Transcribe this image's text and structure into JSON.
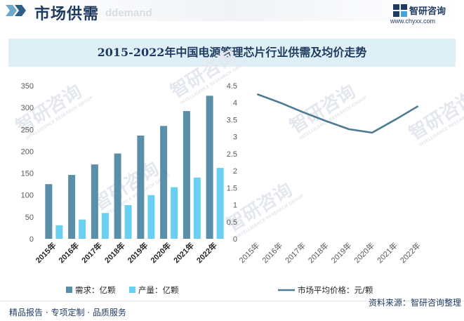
{
  "header": {
    "title": "市场供需",
    "watermark": "ddemand",
    "brand_name": "智研咨询",
    "brand_url": "www.chyxx.com"
  },
  "chart_data": [
    {
      "type": "bar",
      "title": "2015-2022年中国电源管理芯片行业供需及均价走势",
      "categories": [
        "2015年",
        "2016年",
        "2017年",
        "2018年",
        "2019年",
        "2020年",
        "2021年",
        "2022年"
      ],
      "series": [
        {
          "name": "需求：亿颗",
          "values": [
            125,
            146,
            170,
            195,
            236,
            258,
            292,
            327
          ],
          "color": "#5b8fa8"
        },
        {
          "name": "产量：亿颗",
          "values": [
            31,
            44,
            59,
            77,
            100,
            118,
            140,
            162
          ],
          "color": "#6ad0f2"
        }
      ],
      "ylim": [
        0,
        350
      ],
      "yticks": [
        0,
        50,
        100,
        150,
        200,
        250,
        300,
        350
      ],
      "grid": false,
      "legend_position": "bottom"
    },
    {
      "type": "line",
      "categories": [
        "2015年",
        "2016年",
        "2017年",
        "2018年",
        "2019年",
        "2020年",
        "2021年",
        "2022年"
      ],
      "series": [
        {
          "name": "市场平均价格：元/颗",
          "values": [
            4.25,
            4.0,
            3.72,
            3.46,
            3.22,
            3.12,
            3.5,
            3.9
          ],
          "color": "#4d7b92"
        }
      ],
      "ylim": [
        0,
        4.5
      ],
      "yticks": [
        "0",
        "0.5",
        "1",
        "1.5",
        "2",
        "2.5",
        "3",
        "3.5",
        "4",
        "4.5"
      ],
      "grid": false,
      "legend_position": "bottom"
    }
  ],
  "watermark": {
    "cn": "智研咨询",
    "en": "INTELLIGENCE RESEARCH GROUP"
  },
  "footer": {
    "left": "精品报告 · 专项定制 · 品质服务",
    "right": "资料来源：智研咨询整理"
  }
}
